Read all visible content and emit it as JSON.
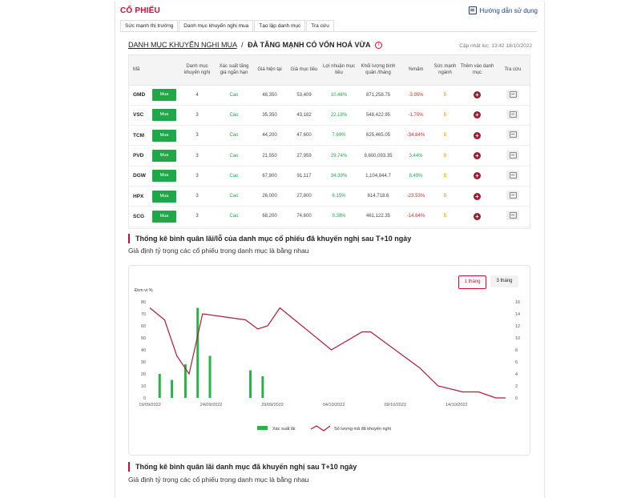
{
  "header": {
    "brand": "CỔ PHIẾU",
    "guide_label": "Hướng dẫn sử dụng"
  },
  "tabs": [
    {
      "label": "Sức mạnh thị trường"
    },
    {
      "label": "Danh mục khuyến nghị mua"
    },
    {
      "label": "Tạo lập danh mục"
    },
    {
      "label": "Tra cứu"
    }
  ],
  "title": {
    "link": "DANH MỤC KHUYẾN NGHỊ MUA",
    "separator": "/",
    "main": "ĐÀ TĂNG MẠNH CÓ VỐN HOÁ VỪA",
    "info_icon": "i",
    "updated": "Cập nhật lúc: 13:42 18/10/2022"
  },
  "table": {
    "columns": [
      "Mã",
      "",
      "Danh mục khuyến nghị",
      "Xác suất tăng giá ngắn hạn",
      "Giá hiện tại",
      "Giá mục tiêu",
      "Lợi nhuận mục tiêu",
      "Khối lượng bình quân /tháng",
      "%mấm",
      "Sức mạnh ngành",
      "Thêm vào danh mục",
      "Tra cứu"
    ],
    "buy_label": "Mua",
    "add_glyph": "+",
    "rows": [
      {
        "ticker": "GMD",
        "count": "4",
        "prob": "Cao",
        "price": "48,350",
        "target": "53,409",
        "profit": "10.46%",
        "volume": "871,258.75",
        "pct": "-3.95%",
        "pct_sign": "neg",
        "strength": "B"
      },
      {
        "ticker": "VSC",
        "count": "3",
        "prob": "Cao",
        "price": "35,350",
        "target": "43,182",
        "profit": "22.18%",
        "volume": "548,422.95",
        "pct": "-1.70%",
        "pct_sign": "neg",
        "strength": "B"
      },
      {
        "ticker": "TCM",
        "count": "3",
        "prob": "Cao",
        "price": "44,200",
        "target": "47,600",
        "profit": "7.69%",
        "volume": "625,465.05",
        "pct": "-34.84%",
        "pct_sign": "neg",
        "strength": "B"
      },
      {
        "ticker": "PVD",
        "count": "3",
        "prob": "Cao",
        "price": "21,550",
        "target": "27,959",
        "profit": "29.74%",
        "volume": "9,600,093.35",
        "pct": "3.44%",
        "pct_sign": "pos",
        "strength": "B"
      },
      {
        "ticker": "DGW",
        "count": "3",
        "prob": "Cao",
        "price": "67,800",
        "target": "91,117",
        "profit": "34.39%",
        "volume": "1,104,844.7",
        "pct": "8.45%",
        "pct_sign": "pos",
        "strength": "B"
      },
      {
        "ticker": "HPX",
        "count": "3",
        "prob": "Cao",
        "price": "26,000",
        "target": "27,800",
        "profit": "6.15%",
        "volume": "614,718.6",
        "pct": "-23.53%",
        "pct_sign": "neg",
        "strength": "B"
      },
      {
        "ticker": "SCG",
        "count": "3",
        "prob": "Cao",
        "price": "68,200",
        "target": "74,600",
        "profit": "9.38%",
        "volume": "461,122.35",
        "pct": "-14.64%",
        "pct_sign": "neg",
        "strength": "B"
      }
    ]
  },
  "section1": {
    "title": "Thống kê bình quân lãi/lỗ của danh mục cổ phiếu đã khuyến nghị sau T+10 ngày",
    "subtitle": "Giả định tỷ trọng các cổ phiếu trong danh mục là bằng nhau"
  },
  "chart_controls": {
    "range_1m": "1 tháng",
    "range_3m": "3 tháng"
  },
  "section2": {
    "title": "Thống kê bình quân lãi danh mục đã khuyến nghị sau T+10 ngày",
    "subtitle": "Giả định tỷ trọng các cổ phiếu trong danh mục là bằng nhau"
  },
  "chart_data": {
    "type": "bar",
    "ylabel": "Đơn vị %",
    "left_axis": {
      "ticks": [
        "0",
        "10",
        "20",
        "30",
        "40",
        "50",
        "60",
        "70",
        "80"
      ],
      "ylim": [
        0,
        80
      ]
    },
    "right_axis": {
      "ticks": [
        "0",
        "2",
        "4",
        "6",
        "8",
        "10",
        "12",
        "14",
        "16"
      ],
      "ylim": [
        0,
        16
      ]
    },
    "x_range": [
      0,
      29
    ],
    "x_tick_labels": [
      {
        "x": 0,
        "label": "19/09/2022"
      },
      {
        "x": 5,
        "label": "24/09/2022"
      },
      {
        "x": 10,
        "label": "29/09/2022"
      },
      {
        "x": 15,
        "label": "04/10/2022"
      },
      {
        "x": 20,
        "label": "09/10/2022"
      },
      {
        "x": 25,
        "label": "14/10/2022"
      }
    ],
    "series": [
      {
        "name": "Xác suất lãi",
        "kind": "bar",
        "axis": "left",
        "color": "#27b345",
        "points": [
          [
            0.8,
            20
          ],
          [
            1.8,
            15
          ],
          [
            2.9,
            28
          ],
          [
            3.9,
            75
          ],
          [
            4.9,
            35
          ],
          [
            8.2,
            23
          ],
          [
            9.2,
            18
          ]
        ]
      },
      {
        "name": "Số lượng mã đã khuyến nghị",
        "kind": "line",
        "axis": "right",
        "color": "#b01c38",
        "points": [
          [
            0,
            15
          ],
          [
            1.2,
            13
          ],
          [
            2.2,
            7
          ],
          [
            3.2,
            4
          ],
          [
            4.3,
            14
          ],
          [
            7.8,
            13
          ],
          [
            8.8,
            11.5
          ],
          [
            9.6,
            12
          ],
          [
            10.6,
            15
          ],
          [
            11.8,
            13
          ],
          [
            14.8,
            8
          ],
          [
            17.3,
            11
          ],
          [
            18,
            11
          ],
          [
            22,
            5
          ],
          [
            23.5,
            2
          ],
          [
            25.5,
            1
          ],
          [
            26.8,
            1
          ],
          [
            28.2,
            0
          ],
          [
            29,
            0
          ]
        ]
      }
    ]
  }
}
